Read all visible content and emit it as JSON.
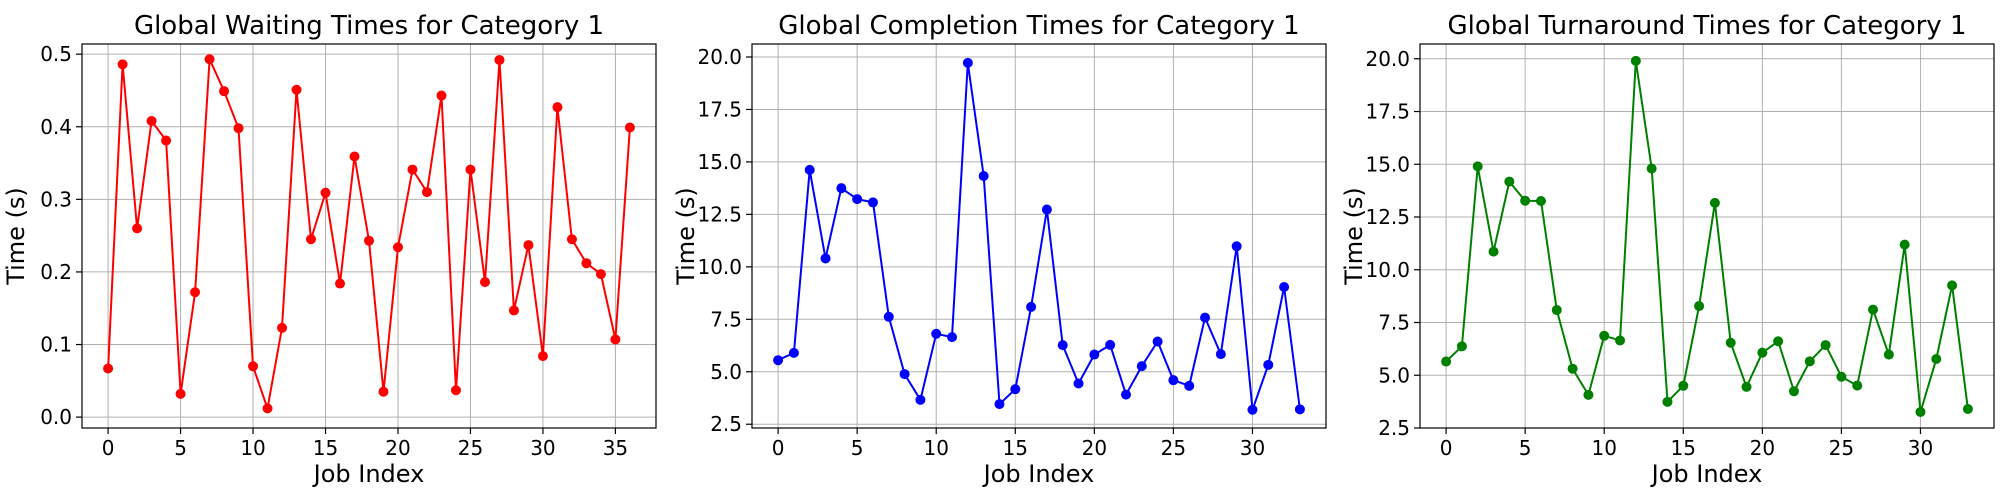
{
  "chart_data": [
    {
      "type": "line",
      "title": "Global Waiting Times for Category 1",
      "xlabel": "Job Index",
      "ylabel": "Time (s)",
      "xlim": [
        -1.8,
        37.8
      ],
      "ylim": [
        -0.015,
        0.514
      ],
      "xticks": [
        0,
        5,
        10,
        15,
        20,
        25,
        30,
        35
      ],
      "yticks": [
        0.0,
        0.1,
        0.2,
        0.3,
        0.4,
        0.5
      ],
      "ytick_labels": [
        "0.0",
        "0.1",
        "0.2",
        "0.3",
        "0.4",
        "0.5"
      ],
      "grid": true,
      "color": "#ff0000",
      "x": [
        0,
        1,
        2,
        3,
        4,
        5,
        6,
        7,
        8,
        9,
        10,
        11,
        12,
        13,
        14,
        15,
        16,
        17,
        18,
        19,
        20,
        21,
        22,
        23,
        24,
        25,
        26,
        27,
        28,
        29,
        30,
        31,
        32,
        33,
        34,
        35,
        36
      ],
      "values": [
        0.067,
        0.486,
        0.26,
        0.408,
        0.381,
        0.032,
        0.172,
        0.493,
        0.449,
        0.398,
        0.07,
        0.012,
        0.123,
        0.451,
        0.245,
        0.309,
        0.184,
        0.359,
        0.243,
        0.035,
        0.234,
        0.341,
        0.31,
        0.443,
        0.037,
        0.341,
        0.186,
        0.492,
        0.147,
        0.237,
        0.084,
        0.427,
        0.245,
        0.212,
        0.197,
        0.107,
        0.399
      ]
    },
    {
      "type": "line",
      "title": "Global Completion Times for Category 1",
      "xlabel": "Job Index",
      "ylabel": "Time (s)",
      "xlim": [
        -1.65,
        34.65
      ],
      "ylim": [
        2.32,
        20.62
      ],
      "xticks": [
        0,
        5,
        10,
        15,
        20,
        25,
        30
      ],
      "yticks": [
        2.5,
        5.0,
        7.5,
        10.0,
        12.5,
        15.0,
        17.5,
        20.0
      ],
      "ytick_labels": [
        "2.5",
        "5.0",
        "7.5",
        "10.0",
        "12.5",
        "15.0",
        "17.5",
        "20.0"
      ],
      "grid": true,
      "color": "#0000ff",
      "x": [
        0,
        1,
        2,
        3,
        4,
        5,
        6,
        7,
        8,
        9,
        10,
        11,
        12,
        13,
        14,
        15,
        16,
        17,
        18,
        19,
        20,
        21,
        22,
        23,
        24,
        25,
        26,
        27,
        28,
        29,
        30,
        31,
        32,
        33
      ],
      "values": [
        5.55,
        5.9,
        14.62,
        10.4,
        13.75,
        13.23,
        13.07,
        7.62,
        4.89,
        3.66,
        6.81,
        6.65,
        19.72,
        14.33,
        3.46,
        4.17,
        8.09,
        12.73,
        6.27,
        4.44,
        5.82,
        6.28,
        3.91,
        5.27,
        6.44,
        4.6,
        4.33,
        7.58,
        5.84,
        10.98,
        3.19,
        5.33,
        9.04,
        3.21
      ]
    },
    {
      "type": "line",
      "title": "Global Turnaround Times for Category 1",
      "xlabel": "Job Index",
      "ylabel": "Time (s)",
      "xlim": [
        -1.65,
        34.65
      ],
      "ylim": [
        2.5,
        20.7
      ],
      "xticks": [
        0,
        5,
        10,
        15,
        20,
        25,
        30
      ],
      "yticks": [
        2.5,
        5.0,
        7.5,
        10.0,
        12.5,
        15.0,
        17.5,
        20.0
      ],
      "ytick_labels": [
        "2.5",
        "5.0",
        "7.5",
        "10.0",
        "12.5",
        "15.0",
        "17.5",
        "20.0"
      ],
      "grid": true,
      "color": "#008000",
      "x": [
        0,
        1,
        2,
        3,
        4,
        5,
        6,
        7,
        8,
        9,
        10,
        11,
        12,
        13,
        14,
        15,
        16,
        17,
        18,
        19,
        20,
        21,
        22,
        23,
        24,
        25,
        26,
        27,
        28,
        29,
        30,
        31,
        32,
        33
      ],
      "values": [
        5.65,
        6.37,
        14.9,
        10.86,
        14.18,
        13.27,
        13.26,
        8.09,
        5.31,
        4.07,
        6.87,
        6.65,
        19.9,
        14.8,
        3.74,
        4.5,
        8.28,
        13.17,
        6.54,
        4.45,
        6.07,
        6.61,
        4.24,
        5.66,
        6.43,
        4.93,
        4.51,
        8.11,
        5.98,
        11.19,
        3.26,
        5.77,
        9.26,
        3.4
      ]
    }
  ]
}
